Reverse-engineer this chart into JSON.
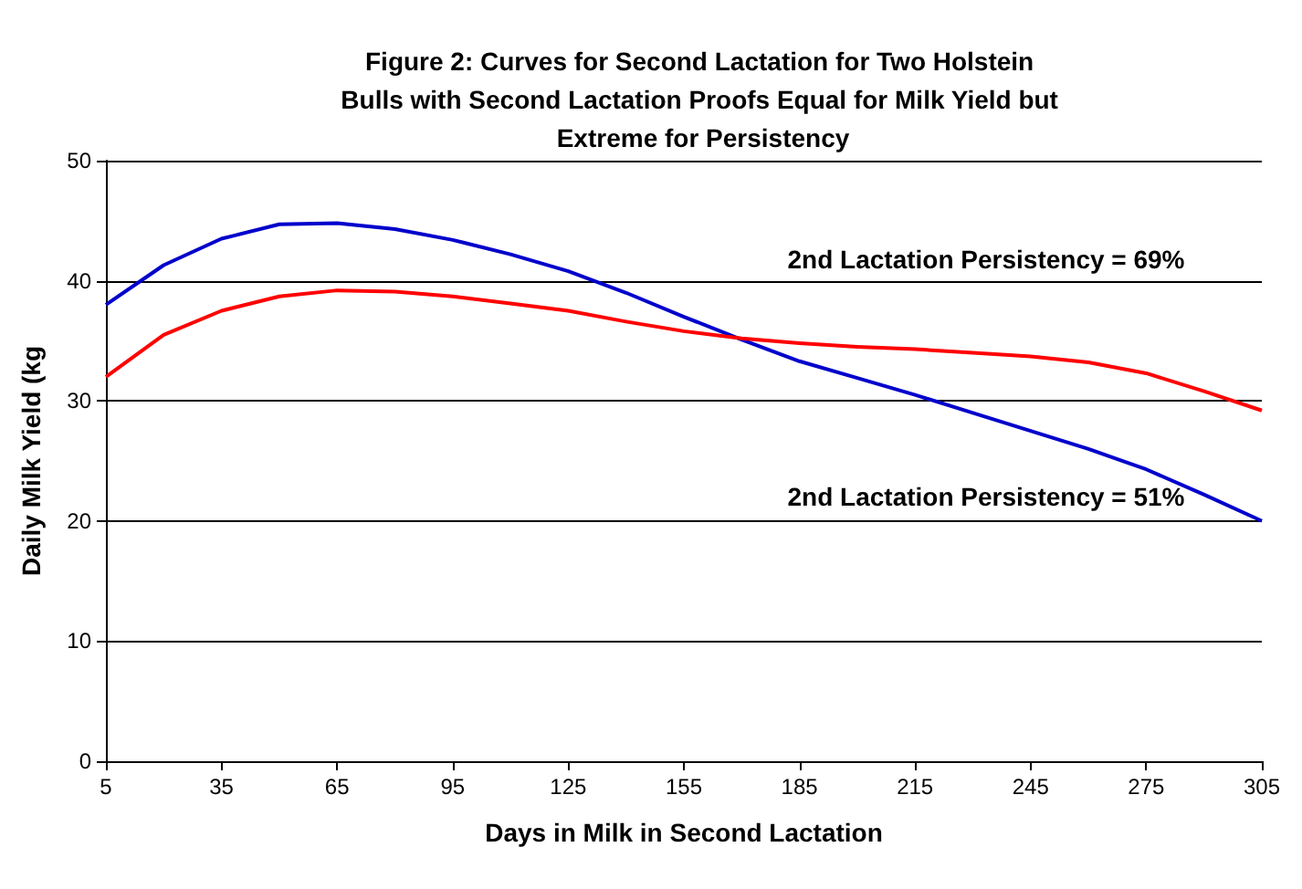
{
  "chart_data": {
    "type": "line",
    "title": "Figure 2: Curves for Second Lactation for Two Holstein Bulls with Second Lactation Proofs Equal for Milk Yield but Extreme for Persistency",
    "xlabel": "Days in Milk in Second Lactation",
    "ylabel": "Daily Milk Yield (kg",
    "series": [
      {
        "color": "#0000cc",
        "x": [
          5,
          20,
          35,
          50,
          65,
          80,
          95,
          110,
          125,
          140,
          155,
          170,
          185,
          200,
          215,
          230,
          245,
          260,
          275,
          290,
          305
        ],
        "values": [
          38,
          41.3,
          43.5,
          44.7,
          44.8,
          44.3,
          43.4,
          42.2,
          40.8,
          39,
          37,
          35.1,
          33.3,
          31.9,
          30.5,
          29,
          27.5,
          26,
          24.3,
          22.2,
          20
        ]
      },
      {
        "color": "#ff0000",
        "x": [
          5,
          20,
          35,
          50,
          65,
          80,
          95,
          110,
          125,
          140,
          155,
          170,
          185,
          200,
          215,
          230,
          245,
          260,
          275,
          290,
          305
        ],
        "values": [
          32,
          35.5,
          37.5,
          38.7,
          39.2,
          39.1,
          38.7,
          38.1,
          37.5,
          36.6,
          35.8,
          35.2,
          34.8,
          34.5,
          34.3,
          34,
          33.7,
          33.2,
          32.3,
          30.8,
          29.2
        ]
      }
    ],
    "annotations": [
      "2nd Lactation Persistency = 69%",
      "2nd Lactation Persistency = 51%"
    ],
    "xlim": [
      5,
      305
    ],
    "xticks": [
      5,
      35,
      65,
      95,
      125,
      155,
      185,
      215,
      245,
      275,
      305
    ],
    "ylim": [
      0,
      50
    ],
    "yticks": [
      0,
      10,
      20,
      30,
      40,
      50
    ],
    "grid": "y",
    "marker": "none",
    "line_style": "solid"
  }
}
